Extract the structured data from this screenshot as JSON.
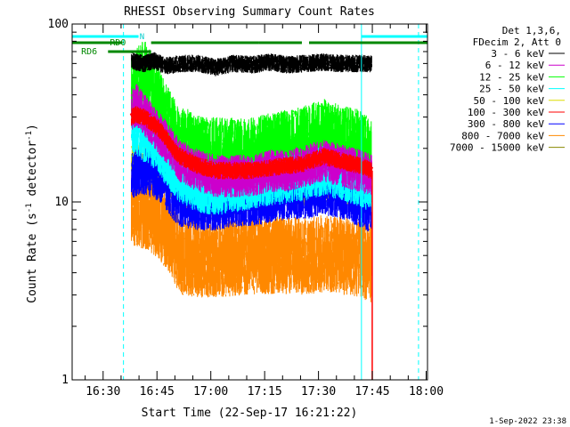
{
  "chart_data": {
    "type": "line",
    "title": "RHESSI Observing Summary Count Rates",
    "xlabel": "Start Time (22-Sep-17 16:21:22)",
    "ylabel_main": "Count Rate (s",
    "ylabel_sup1": "-1",
    "ylabel_mid": " detector",
    "ylabel_sup2": "-1",
    "ylabel_end": ")",
    "yscale": "log",
    "ylim": [
      1,
      100
    ],
    "xlim_minutes": [
      0,
      99
    ],
    "y_ticks": [
      "1",
      "10",
      "100"
    ],
    "x_ticks": [
      {
        "label": "16:30",
        "min": 8.63
      },
      {
        "label": "16:45",
        "min": 23.63
      },
      {
        "label": "17:00",
        "min": 38.63
      },
      {
        "label": "17:15",
        "min": 53.63
      },
      {
        "label": "17:30",
        "min": 68.63
      },
      {
        "label": "17:45",
        "min": 83.63
      },
      {
        "label": "18:00",
        "min": 98.63
      }
    ],
    "legend_header": [
      "Det 1,3,6,",
      "FDecim 2, Att 0"
    ],
    "series": [
      {
        "name": "3 - 6 keV",
        "color": "#000000",
        "values": [
          [
            16.5,
            62
          ],
          [
            20,
            60
          ],
          [
            23,
            62
          ],
          [
            26,
            58
          ],
          [
            30,
            60
          ],
          [
            35,
            60
          ],
          [
            40,
            57
          ],
          [
            45,
            60
          ],
          [
            50,
            59
          ],
          [
            55,
            61
          ],
          [
            60,
            59
          ],
          [
            65,
            60
          ],
          [
            70,
            61
          ],
          [
            75,
            60
          ],
          [
            80,
            60
          ],
          [
            83.5,
            60
          ]
        ]
      },
      {
        "name": "6 - 12 keV",
        "color": "#cc00cc",
        "values": [
          [
            16.5,
            33
          ],
          [
            18,
            35
          ],
          [
            20,
            31
          ],
          [
            23,
            26
          ],
          [
            26,
            22
          ],
          [
            30,
            17
          ],
          [
            35,
            15
          ],
          [
            40,
            14
          ],
          [
            45,
            14
          ],
          [
            50,
            14
          ],
          [
            55,
            15
          ],
          [
            60,
            15
          ],
          [
            65,
            16
          ],
          [
            70,
            17
          ],
          [
            75,
            16
          ],
          [
            80,
            15
          ],
          [
            83.5,
            14
          ]
        ]
      },
      {
        "name": "12 - 25 keV",
        "color": "#00ff00",
        "values": [
          [
            16.5,
            38
          ],
          [
            18,
            44
          ],
          [
            20,
            50
          ],
          [
            22,
            42
          ],
          [
            24,
            36
          ],
          [
            26,
            28
          ],
          [
            30,
            21
          ],
          [
            35,
            19
          ],
          [
            40,
            18
          ],
          [
            45,
            18
          ],
          [
            50,
            18
          ],
          [
            55,
            19
          ],
          [
            60,
            20
          ],
          [
            65,
            21
          ],
          [
            70,
            23
          ],
          [
            75,
            21
          ],
          [
            80,
            20
          ],
          [
            83.5,
            18
          ]
        ]
      },
      {
        "name": "25 - 50 keV",
        "color": "#00ffff",
        "values": [
          [
            16.5,
            24
          ],
          [
            18,
            25
          ],
          [
            20,
            23
          ],
          [
            22,
            22
          ],
          [
            24,
            20
          ],
          [
            26,
            17
          ],
          [
            30,
            13.5
          ],
          [
            35,
            12
          ],
          [
            40,
            11.5
          ],
          [
            45,
            12
          ],
          [
            50,
            12.5
          ],
          [
            55,
            13
          ],
          [
            60,
            13.5
          ],
          [
            65,
            14
          ],
          [
            70,
            15
          ],
          [
            75,
            14
          ],
          [
            80,
            13
          ],
          [
            83.5,
            12
          ]
        ]
      },
      {
        "name": "50 - 100 keV",
        "color": "#dddd00",
        "values": [
          [
            16.5,
            17
          ],
          [
            20,
            16.5
          ],
          [
            24,
            15
          ],
          [
            28,
            13
          ],
          [
            32,
            11.5
          ],
          [
            36,
            10.5
          ],
          [
            40,
            10
          ],
          [
            45,
            10.5
          ],
          [
            50,
            11
          ],
          [
            55,
            11.5
          ],
          [
            60,
            12
          ],
          [
            65,
            12
          ],
          [
            70,
            12.5
          ],
          [
            75,
            12
          ],
          [
            80,
            11.5
          ],
          [
            83.5,
            11
          ]
        ]
      },
      {
        "name": "100 - 300 keV",
        "color": "#ff0000",
        "values": [
          [
            16.5,
            30
          ],
          [
            18,
            31
          ],
          [
            20,
            30
          ],
          [
            22,
            28
          ],
          [
            24,
            26
          ],
          [
            26,
            23
          ],
          [
            28,
            20
          ],
          [
            30,
            18
          ],
          [
            35,
            16
          ],
          [
            40,
            15
          ],
          [
            45,
            15
          ],
          [
            50,
            15
          ],
          [
            55,
            15.5
          ],
          [
            60,
            16
          ],
          [
            65,
            16.5
          ],
          [
            70,
            18
          ],
          [
            75,
            17
          ],
          [
            80,
            16
          ],
          [
            83.5,
            15
          ]
        ]
      },
      {
        "name": "300 - 800 keV",
        "color": "#0000ff",
        "values": [
          [
            16.5,
            14.5
          ],
          [
            20,
            15
          ],
          [
            24,
            14
          ],
          [
            26,
            12.5
          ],
          [
            28,
            11
          ],
          [
            30,
            10
          ],
          [
            35,
            9.5
          ],
          [
            40,
            9.5
          ],
          [
            45,
            10
          ],
          [
            50,
            10
          ],
          [
            55,
            10.5
          ],
          [
            60,
            11
          ],
          [
            65,
            11
          ],
          [
            70,
            11.5
          ],
          [
            75,
            11
          ],
          [
            80,
            10
          ],
          [
            83.5,
            9
          ]
        ]
      },
      {
        "name": "800 - 7000 keV",
        "color": "#ff8800",
        "values": [
          [
            16.5,
            9.5
          ],
          [
            20,
            9
          ],
          [
            24,
            8
          ],
          [
            26,
            7
          ],
          [
            28,
            6
          ],
          [
            30,
            5
          ],
          [
            35,
            4.8
          ],
          [
            40,
            4.8
          ],
          [
            45,
            4.9
          ],
          [
            50,
            5
          ],
          [
            55,
            5
          ],
          [
            60,
            5
          ],
          [
            65,
            5
          ],
          [
            70,
            5.1
          ],
          [
            75,
            5
          ],
          [
            80,
            4.8
          ],
          [
            83.5,
            4.5
          ]
        ]
      },
      {
        "name": "7000 - 15000 keV",
        "color": "#888800",
        "values": []
      }
    ],
    "annotations": {
      "N_label": "N",
      "RD0_label": "RD0",
      "RD6_label": "RD6",
      "cyan_bars_min": [
        [
          0,
          18.5
        ],
        [
          80.5,
          99
        ]
      ],
      "rd0_green_bars_min": [
        [
          0,
          14
        ],
        [
          22,
          52
        ],
        [
          52,
          64
        ],
        [
          66,
          99
        ]
      ],
      "rd6_green_bars_min": [
        [
          10,
          22
        ]
      ],
      "cyan_solid_vlines_min": [
        0,
        80.6
      ],
      "cyan_dashed_vlines_min": [
        14.3,
        96.5
      ],
      "red_drop_min": 83.6
    },
    "footer_date": "1-Sep-2022 23:38"
  }
}
